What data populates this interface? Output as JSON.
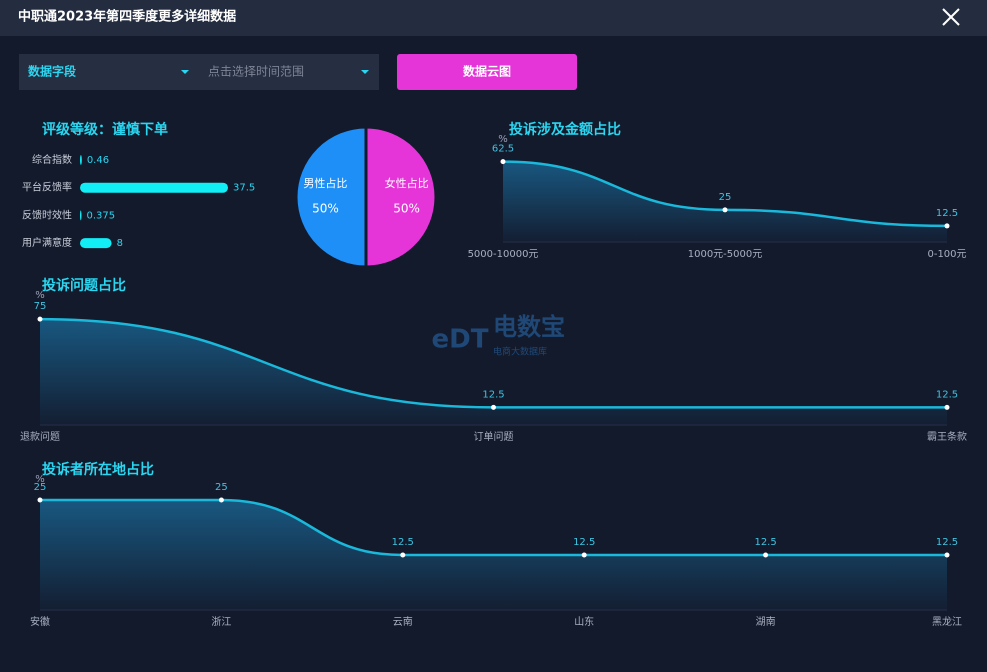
{
  "header": {
    "title": "中职通2023年第四季度更多详细数据"
  },
  "controls": {
    "field_select": "数据字段",
    "time_select": "点击选择时间范围",
    "button": "数据云图"
  },
  "watermark": {
    "logo": "eDT",
    "name": "电数宝",
    "subtitle": "电商大数据库"
  },
  "chart_data": [
    {
      "type": "hbar",
      "title": "评级等级：谨慎下单",
      "categories": [
        "综合指数",
        "平台反馈率",
        "反馈时效性",
        "用户满意度"
      ],
      "values": [
        0.46,
        37.5,
        0.375,
        8
      ],
      "color": "#12eef6"
    },
    {
      "type": "pie",
      "categories": [
        "男性占比",
        "女性占比"
      ],
      "values": [
        50,
        50
      ],
      "value_labels": [
        "50%",
        "50%"
      ],
      "colors": [
        "#1e8ff7",
        "#e535d8"
      ]
    },
    {
      "type": "area",
      "title": "投诉涉及金额占比",
      "unit": "%",
      "categories": [
        "5000-10000元",
        "1000元-5000元",
        "0-100元"
      ],
      "values": [
        62.5,
        25,
        12.5
      ],
      "ylim": [
        0,
        70
      ],
      "color": "#1ab8da"
    },
    {
      "type": "area",
      "title": "投诉问题占比",
      "unit": "%",
      "categories": [
        "退款问题",
        "订单问题",
        "霸王条款"
      ],
      "values": [
        75,
        12.5,
        12.5
      ],
      "ylim": [
        0,
        85
      ],
      "color": "#1ab8da"
    },
    {
      "type": "area",
      "title": "投诉者所在地占比",
      "unit": "%",
      "categories": [
        "安徽",
        "浙江",
        "云南",
        "山东",
        "湖南",
        "黑龙江"
      ],
      "values": [
        25,
        25,
        12.5,
        12.5,
        12.5,
        12.5
      ],
      "ylim": [
        0,
        30
      ],
      "color": "#1ab8da"
    }
  ]
}
